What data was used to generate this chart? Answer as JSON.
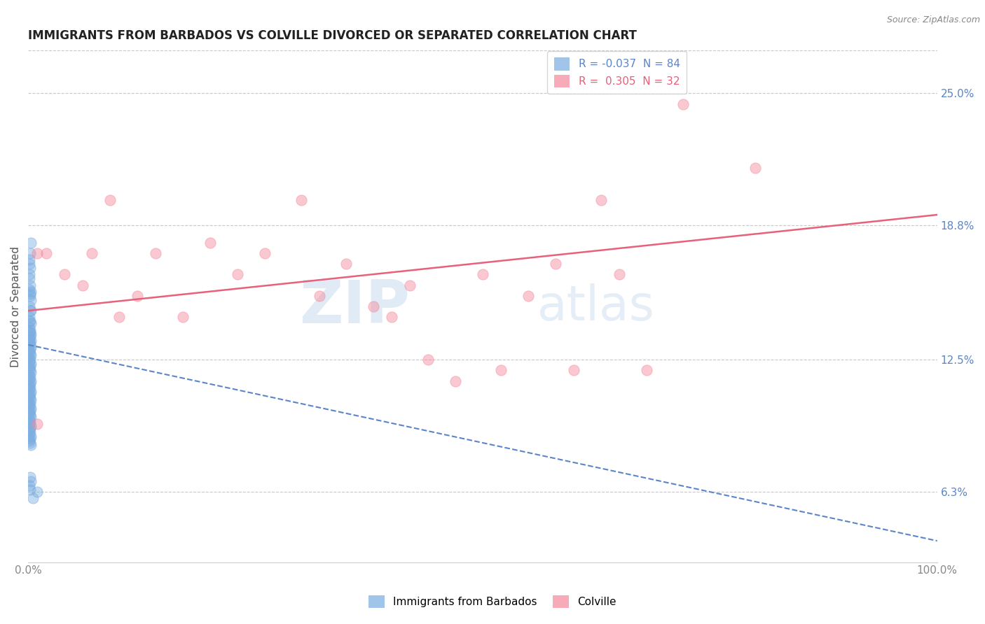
{
  "title": "IMMIGRANTS FROM BARBADOS VS COLVILLE DIVORCED OR SEPARATED CORRELATION CHART",
  "source": "Source: ZipAtlas.com",
  "ylabel": "Divorced or Separated",
  "xlim": [
    0.0,
    1.0
  ],
  "ylim": [
    0.03,
    0.27
  ],
  "yticks": [
    0.063,
    0.125,
    0.188,
    0.25
  ],
  "ytick_labels": [
    "6.3%",
    "12.5%",
    "18.8%",
    "25.0%"
  ],
  "xticks": [
    0.0,
    1.0
  ],
  "xtick_labels": [
    "0.0%",
    "100.0%"
  ],
  "legend_label_blue": "R = -0.037  N = 84",
  "legend_label_pink": "R =  0.305  N = 32",
  "watermark_zip": "ZIP",
  "watermark_atlas": "atlas",
  "blue_scatter_x": [
    0.002,
    0.001,
    0.003,
    0.001,
    0.002,
    0.003,
    0.001,
    0.002,
    0.001,
    0.003,
    0.002,
    0.001,
    0.003,
    0.002,
    0.001,
    0.003,
    0.002,
    0.001,
    0.002,
    0.003,
    0.001,
    0.002,
    0.001,
    0.003,
    0.002,
    0.001,
    0.002,
    0.003,
    0.001,
    0.002,
    0.001,
    0.003,
    0.002,
    0.001,
    0.002,
    0.001,
    0.003,
    0.002,
    0.001,
    0.002,
    0.003,
    0.001,
    0.002,
    0.001,
    0.003,
    0.002,
    0.001,
    0.002,
    0.003,
    0.001,
    0.002,
    0.001,
    0.003,
    0.002,
    0.001,
    0.002,
    0.001,
    0.003,
    0.002,
    0.001,
    0.002,
    0.003,
    0.001,
    0.002,
    0.001,
    0.003,
    0.002,
    0.001,
    0.002,
    0.003,
    0.001,
    0.002,
    0.001,
    0.003,
    0.002,
    0.001,
    0.002,
    0.001,
    0.002,
    0.003,
    0.001,
    0.002,
    0.01,
    0.005
  ],
  "blue_scatter_y": [
    0.155,
    0.15,
    0.148,
    0.145,
    0.143,
    0.142,
    0.14,
    0.139,
    0.138,
    0.137,
    0.136,
    0.135,
    0.134,
    0.133,
    0.132,
    0.131,
    0.13,
    0.129,
    0.128,
    0.127,
    0.126,
    0.125,
    0.124,
    0.123,
    0.122,
    0.121,
    0.12,
    0.119,
    0.118,
    0.117,
    0.116,
    0.115,
    0.114,
    0.113,
    0.112,
    0.111,
    0.11,
    0.109,
    0.108,
    0.107,
    0.106,
    0.105,
    0.104,
    0.103,
    0.102,
    0.101,
    0.1,
    0.099,
    0.098,
    0.097,
    0.096,
    0.095,
    0.094,
    0.093,
    0.092,
    0.091,
    0.09,
    0.089,
    0.088,
    0.087,
    0.086,
    0.085,
    0.165,
    0.16,
    0.158,
    0.157,
    0.156,
    0.17,
    0.175,
    0.18,
    0.172,
    0.168,
    0.163,
    0.153,
    0.148,
    0.143,
    0.138,
    0.133,
    0.07,
    0.068,
    0.066,
    0.064,
    0.063,
    0.06
  ],
  "pink_scatter_x": [
    0.01,
    0.01,
    0.02,
    0.04,
    0.06,
    0.07,
    0.09,
    0.1,
    0.12,
    0.14,
    0.17,
    0.2,
    0.23,
    0.26,
    0.3,
    0.32,
    0.35,
    0.38,
    0.4,
    0.42,
    0.44,
    0.47,
    0.5,
    0.52,
    0.55,
    0.58,
    0.6,
    0.63,
    0.65,
    0.68,
    0.72,
    0.8
  ],
  "pink_scatter_y": [
    0.175,
    0.095,
    0.175,
    0.165,
    0.16,
    0.175,
    0.2,
    0.145,
    0.155,
    0.175,
    0.145,
    0.18,
    0.165,
    0.175,
    0.2,
    0.155,
    0.17,
    0.15,
    0.145,
    0.16,
    0.125,
    0.115,
    0.165,
    0.12,
    0.155,
    0.17,
    0.12,
    0.2,
    0.165,
    0.12,
    0.245,
    0.215
  ],
  "blue_line_x": [
    0.0,
    1.0
  ],
  "blue_line_y": [
    0.132,
    0.04
  ],
  "pink_line_x": [
    0.0,
    1.0
  ],
  "pink_line_y": [
    0.148,
    0.193
  ],
  "blue_color": "#7aade0",
  "pink_color": "#f4879a",
  "blue_line_color": "#5b85c8",
  "pink_line_color": "#e8607a",
  "grid_color": "#c8c8c8",
  "background_color": "#ffffff",
  "title_fontsize": 12,
  "axis_label_fontsize": 11,
  "tick_fontsize": 11,
  "scatter_size": 120,
  "scatter_alpha": 0.45,
  "right_tick_color": "#5b85c8"
}
